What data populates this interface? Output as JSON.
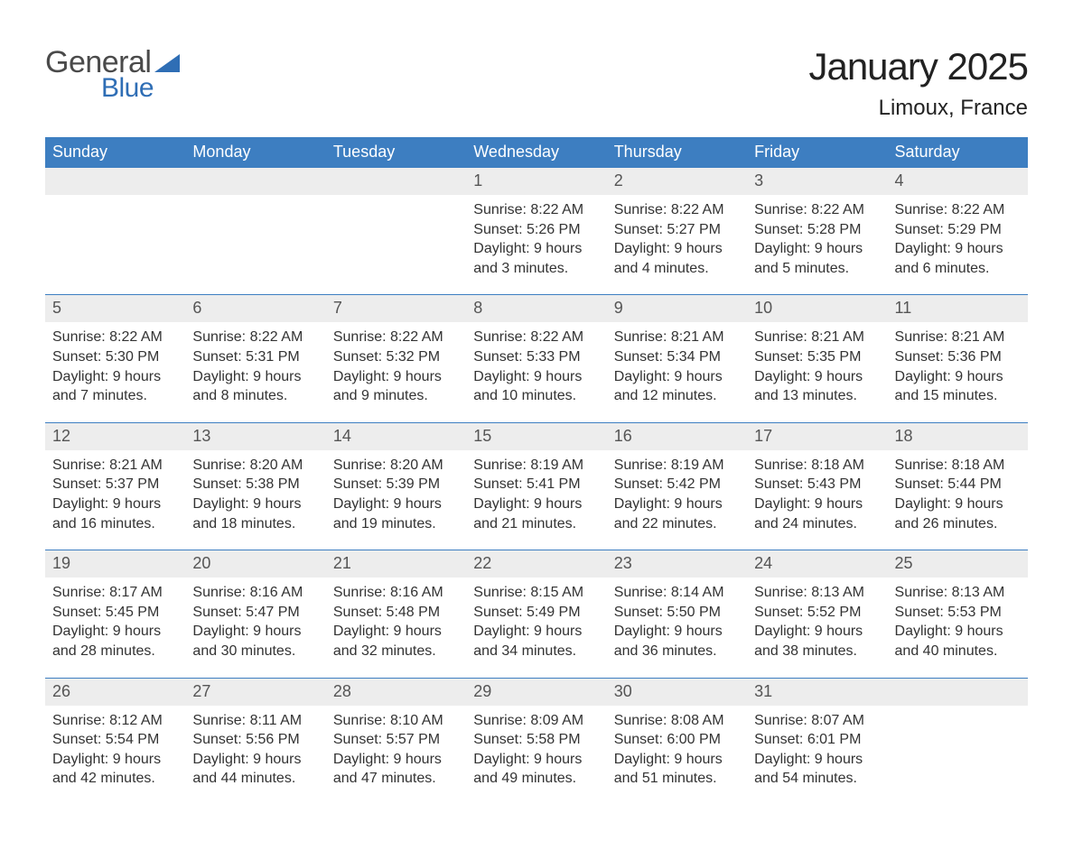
{
  "logo": {
    "text_general": "General",
    "text_blue": "Blue",
    "tri_color": "#2f6eb5"
  },
  "title": "January 2025",
  "location": "Limoux, France",
  "colors": {
    "header_bg": "#3d7ec1",
    "header_text": "#ffffff",
    "strip_bg": "#ededed",
    "week_border": "#3d7ec1",
    "body_text": "#333333",
    "page_bg": "#ffffff"
  },
  "day_headers": [
    "Sunday",
    "Monday",
    "Tuesday",
    "Wednesday",
    "Thursday",
    "Friday",
    "Saturday"
  ],
  "weeks": [
    [
      null,
      null,
      null,
      {
        "n": "1",
        "sunrise": "Sunrise: 8:22 AM",
        "sunset": "Sunset: 5:26 PM",
        "dl1": "Daylight: 9 hours",
        "dl2": "and 3 minutes."
      },
      {
        "n": "2",
        "sunrise": "Sunrise: 8:22 AM",
        "sunset": "Sunset: 5:27 PM",
        "dl1": "Daylight: 9 hours",
        "dl2": "and 4 minutes."
      },
      {
        "n": "3",
        "sunrise": "Sunrise: 8:22 AM",
        "sunset": "Sunset: 5:28 PM",
        "dl1": "Daylight: 9 hours",
        "dl2": "and 5 minutes."
      },
      {
        "n": "4",
        "sunrise": "Sunrise: 8:22 AM",
        "sunset": "Sunset: 5:29 PM",
        "dl1": "Daylight: 9 hours",
        "dl2": "and 6 minutes."
      }
    ],
    [
      {
        "n": "5",
        "sunrise": "Sunrise: 8:22 AM",
        "sunset": "Sunset: 5:30 PM",
        "dl1": "Daylight: 9 hours",
        "dl2": "and 7 minutes."
      },
      {
        "n": "6",
        "sunrise": "Sunrise: 8:22 AM",
        "sunset": "Sunset: 5:31 PM",
        "dl1": "Daylight: 9 hours",
        "dl2": "and 8 minutes."
      },
      {
        "n": "7",
        "sunrise": "Sunrise: 8:22 AM",
        "sunset": "Sunset: 5:32 PM",
        "dl1": "Daylight: 9 hours",
        "dl2": "and 9 minutes."
      },
      {
        "n": "8",
        "sunrise": "Sunrise: 8:22 AM",
        "sunset": "Sunset: 5:33 PM",
        "dl1": "Daylight: 9 hours",
        "dl2": "and 10 minutes."
      },
      {
        "n": "9",
        "sunrise": "Sunrise: 8:21 AM",
        "sunset": "Sunset: 5:34 PM",
        "dl1": "Daylight: 9 hours",
        "dl2": "and 12 minutes."
      },
      {
        "n": "10",
        "sunrise": "Sunrise: 8:21 AM",
        "sunset": "Sunset: 5:35 PM",
        "dl1": "Daylight: 9 hours",
        "dl2": "and 13 minutes."
      },
      {
        "n": "11",
        "sunrise": "Sunrise: 8:21 AM",
        "sunset": "Sunset: 5:36 PM",
        "dl1": "Daylight: 9 hours",
        "dl2": "and 15 minutes."
      }
    ],
    [
      {
        "n": "12",
        "sunrise": "Sunrise: 8:21 AM",
        "sunset": "Sunset: 5:37 PM",
        "dl1": "Daylight: 9 hours",
        "dl2": "and 16 minutes."
      },
      {
        "n": "13",
        "sunrise": "Sunrise: 8:20 AM",
        "sunset": "Sunset: 5:38 PM",
        "dl1": "Daylight: 9 hours",
        "dl2": "and 18 minutes."
      },
      {
        "n": "14",
        "sunrise": "Sunrise: 8:20 AM",
        "sunset": "Sunset: 5:39 PM",
        "dl1": "Daylight: 9 hours",
        "dl2": "and 19 minutes."
      },
      {
        "n": "15",
        "sunrise": "Sunrise: 8:19 AM",
        "sunset": "Sunset: 5:41 PM",
        "dl1": "Daylight: 9 hours",
        "dl2": "and 21 minutes."
      },
      {
        "n": "16",
        "sunrise": "Sunrise: 8:19 AM",
        "sunset": "Sunset: 5:42 PM",
        "dl1": "Daylight: 9 hours",
        "dl2": "and 22 minutes."
      },
      {
        "n": "17",
        "sunrise": "Sunrise: 8:18 AM",
        "sunset": "Sunset: 5:43 PM",
        "dl1": "Daylight: 9 hours",
        "dl2": "and 24 minutes."
      },
      {
        "n": "18",
        "sunrise": "Sunrise: 8:18 AM",
        "sunset": "Sunset: 5:44 PM",
        "dl1": "Daylight: 9 hours",
        "dl2": "and 26 minutes."
      }
    ],
    [
      {
        "n": "19",
        "sunrise": "Sunrise: 8:17 AM",
        "sunset": "Sunset: 5:45 PM",
        "dl1": "Daylight: 9 hours",
        "dl2": "and 28 minutes."
      },
      {
        "n": "20",
        "sunrise": "Sunrise: 8:16 AM",
        "sunset": "Sunset: 5:47 PM",
        "dl1": "Daylight: 9 hours",
        "dl2": "and 30 minutes."
      },
      {
        "n": "21",
        "sunrise": "Sunrise: 8:16 AM",
        "sunset": "Sunset: 5:48 PM",
        "dl1": "Daylight: 9 hours",
        "dl2": "and 32 minutes."
      },
      {
        "n": "22",
        "sunrise": "Sunrise: 8:15 AM",
        "sunset": "Sunset: 5:49 PM",
        "dl1": "Daylight: 9 hours",
        "dl2": "and 34 minutes."
      },
      {
        "n": "23",
        "sunrise": "Sunrise: 8:14 AM",
        "sunset": "Sunset: 5:50 PM",
        "dl1": "Daylight: 9 hours",
        "dl2": "and 36 minutes."
      },
      {
        "n": "24",
        "sunrise": "Sunrise: 8:13 AM",
        "sunset": "Sunset: 5:52 PM",
        "dl1": "Daylight: 9 hours",
        "dl2": "and 38 minutes."
      },
      {
        "n": "25",
        "sunrise": "Sunrise: 8:13 AM",
        "sunset": "Sunset: 5:53 PM",
        "dl1": "Daylight: 9 hours",
        "dl2": "and 40 minutes."
      }
    ],
    [
      {
        "n": "26",
        "sunrise": "Sunrise: 8:12 AM",
        "sunset": "Sunset: 5:54 PM",
        "dl1": "Daylight: 9 hours",
        "dl2": "and 42 minutes."
      },
      {
        "n": "27",
        "sunrise": "Sunrise: 8:11 AM",
        "sunset": "Sunset: 5:56 PM",
        "dl1": "Daylight: 9 hours",
        "dl2": "and 44 minutes."
      },
      {
        "n": "28",
        "sunrise": "Sunrise: 8:10 AM",
        "sunset": "Sunset: 5:57 PM",
        "dl1": "Daylight: 9 hours",
        "dl2": "and 47 minutes."
      },
      {
        "n": "29",
        "sunrise": "Sunrise: 8:09 AM",
        "sunset": "Sunset: 5:58 PM",
        "dl1": "Daylight: 9 hours",
        "dl2": "and 49 minutes."
      },
      {
        "n": "30",
        "sunrise": "Sunrise: 8:08 AM",
        "sunset": "Sunset: 6:00 PM",
        "dl1": "Daylight: 9 hours",
        "dl2": "and 51 minutes."
      },
      {
        "n": "31",
        "sunrise": "Sunrise: 8:07 AM",
        "sunset": "Sunset: 6:01 PM",
        "dl1": "Daylight: 9 hours",
        "dl2": "and 54 minutes."
      },
      null
    ]
  ]
}
